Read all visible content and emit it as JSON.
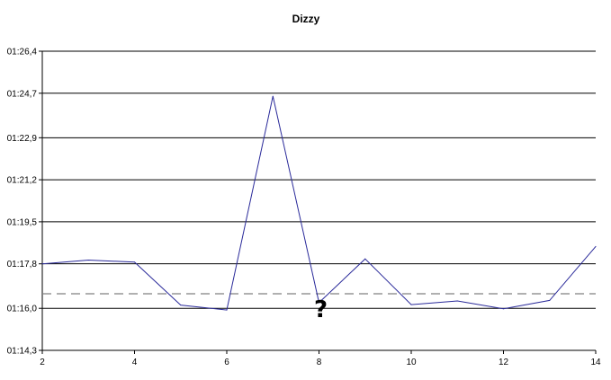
{
  "chart_data": {
    "type": "line",
    "title": "Dizzy",
    "xlabel": "",
    "ylabel": "",
    "xlim": [
      2,
      14
    ],
    "x_ticks": [
      "2",
      "4",
      "6",
      "8",
      "10",
      "12",
      "14"
    ],
    "x_tick_values": [
      2,
      4,
      6,
      8,
      10,
      12,
      14
    ],
    "ylim_seconds": [
      4463,
      4584
    ],
    "y_ticks": [
      "01:14,3",
      "01:16,0",
      "01:17,8",
      "01:19,5",
      "01:21,2",
      "01:22,9",
      "01:24,7",
      "01:26,4"
    ],
    "y_tick_values_seconds": [
      4463,
      4480,
      4498,
      4515,
      4532,
      4549,
      4567,
      4584
    ],
    "grid": true,
    "series": [
      {
        "x": [
          2,
          3,
          4,
          5,
          6,
          7,
          8,
          9,
          10,
          11,
          12,
          13,
          14
        ],
        "values_seconds": [
          4498,
          4499.5,
          4498.7,
          4481.3,
          4479.3,
          4565.8,
          4482.3,
          4500,
          4481.5,
          4483,
          4479.8,
          4483.2,
          4505
        ]
      }
    ],
    "reference_line_seconds": 4485.9,
    "reference_line_style": "dashed",
    "annotation": {
      "text": "?",
      "x": 8
    },
    "colors": {
      "series": "#2a2a9a",
      "reference": "#808080",
      "grid": "#000000"
    }
  }
}
